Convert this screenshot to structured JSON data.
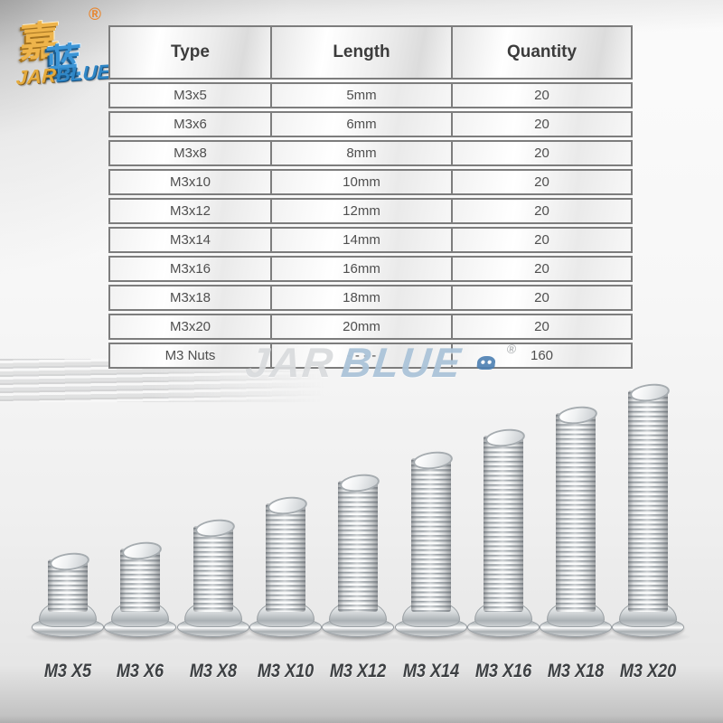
{
  "brand_logo": {
    "glyph_top": "嘉",
    "glyph_bottom": "蓝",
    "registered": "®",
    "jar": "JAR",
    "blue": "BLUE"
  },
  "spec_table": {
    "headers": [
      "Type",
      "Length",
      "Quantity"
    ],
    "rows": [
      {
        "type": "M3x5",
        "length": "5mm",
        "quantity": "20"
      },
      {
        "type": "M3x6",
        "length": "6mm",
        "quantity": "20"
      },
      {
        "type": "M3x8",
        "length": "8mm",
        "quantity": "20"
      },
      {
        "type": "M3x10",
        "length": "10mm",
        "quantity": "20"
      },
      {
        "type": "M3x12",
        "length": "12mm",
        "quantity": "20"
      },
      {
        "type": "M3x14",
        "length": "14mm",
        "quantity": "20"
      },
      {
        "type": "M3x16",
        "length": "16mm",
        "quantity": "20"
      },
      {
        "type": "M3x18",
        "length": "18mm",
        "quantity": "20"
      },
      {
        "type": "M3x20",
        "length": "20mm",
        "quantity": "20"
      },
      {
        "type": "M3 Nuts",
        "length": "- - - -",
        "quantity": "160"
      }
    ]
  },
  "watermark": {
    "jar": "JAR",
    "blue": "BLUE",
    "registered": "®",
    "badge_icon": "mascot-badge-icon"
  },
  "screws": [
    {
      "label": "M3 X5",
      "length_mm": 5
    },
    {
      "label": "M3 X6",
      "length_mm": 6
    },
    {
      "label": "M3 X8",
      "length_mm": 8
    },
    {
      "label": "M3 X10",
      "length_mm": 10
    },
    {
      "label": "M3 X12",
      "length_mm": 12
    },
    {
      "label": "M3 X14",
      "length_mm": 14
    },
    {
      "label": "M3 X16",
      "length_mm": 16
    },
    {
      "label": "M3 X18",
      "length_mm": 18
    },
    {
      "label": "M3 X20",
      "length_mm": 20
    }
  ],
  "colors": {
    "brand_gold": "#e5ab3e",
    "brand_blue": "#2f86c6",
    "registered_orange": "#e8862f",
    "watermark_gray": "#d5d7d9",
    "watermark_blue": "#a6c0d6",
    "badge_orange": "#f1ac41",
    "table_border": "#7d7d7d",
    "header_text": "#3c3c3c",
    "cell_text": "#4f4f4f",
    "screw_label_text": "#3d4043"
  }
}
